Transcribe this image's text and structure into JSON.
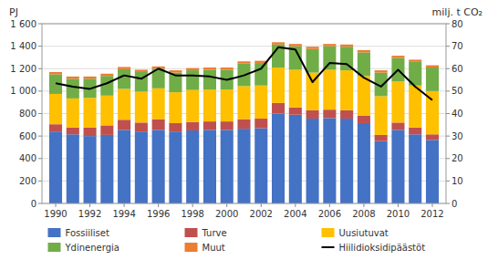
{
  "chart_data": {
    "type": "bar",
    "stacked": true,
    "grid": true,
    "legend": "bottom",
    "ylabel": "PJ",
    "y2label": "milj. t  CO₂",
    "x": [
      1990,
      1991,
      1992,
      1993,
      1994,
      1995,
      1996,
      1997,
      1998,
      1999,
      2000,
      2001,
      2002,
      2003,
      2004,
      2005,
      2006,
      2007,
      2008,
      2009,
      2010,
      2011,
      2012
    ],
    "xlim": [
      1989.2,
      2012.8
    ],
    "xticks": [
      1990,
      1992,
      1994,
      1996,
      1998,
      2000,
      2002,
      2004,
      2006,
      2008,
      2010,
      2012
    ],
    "ylim": [
      0,
      1600
    ],
    "yticks": [
      0,
      200,
      400,
      600,
      800,
      {
        "value": 1000,
        "label": "1 000"
      },
      {
        "value": 1200,
        "label": "1 200"
      },
      {
        "value": 1400,
        "label": "1 400"
      },
      {
        "value": 1600,
        "label": "1 600"
      }
    ],
    "y2lim": [
      0,
      80
    ],
    "y2ticks": [
      0,
      10,
      20,
      30,
      40,
      50,
      60,
      70,
      80
    ],
    "series": [
      {
        "name": "Fossiiliset",
        "color": "#4472c4",
        "values": [
          640,
          615,
          600,
          610,
          655,
          640,
          655,
          640,
          650,
          655,
          655,
          665,
          670,
          800,
          790,
          755,
          760,
          755,
          715,
          555,
          655,
          615,
          565
        ]
      },
      {
        "name": "Turve",
        "color": "#c0504d",
        "values": [
          65,
          60,
          75,
          85,
          90,
          80,
          95,
          75,
          75,
          75,
          75,
          85,
          85,
          95,
          65,
          75,
          75,
          75,
          65,
          55,
          65,
          60,
          50
        ]
      },
      {
        "name": "Uusiutuvat",
        "color": "#ffc000",
        "values": [
          270,
          260,
          265,
          265,
          275,
          275,
          275,
          275,
          285,
          285,
          285,
          295,
          295,
          315,
          335,
          335,
          355,
          355,
          355,
          345,
          365,
          375,
          385
        ]
      },
      {
        "name": "Ydinenergia",
        "color": "#70ad47",
        "values": [
          175,
          175,
          170,
          175,
          175,
          175,
          175,
          175,
          175,
          175,
          175,
          200,
          200,
          205,
          210,
          210,
          210,
          210,
          210,
          210,
          210,
          210,
          210
        ]
      },
      {
        "name": "Muut",
        "color": "#ed7d31",
        "values": [
          20,
          20,
          20,
          20,
          20,
          20,
          20,
          20,
          20,
          20,
          20,
          20,
          20,
          20,
          20,
          20,
          20,
          20,
          20,
          20,
          20,
          20,
          20
        ]
      },
      {
        "name": "Hiilidioksidipäästöt",
        "type": "line",
        "axis": "y2",
        "color": "#000000",
        "values": [
          53.5,
          52.0,
          51.0,
          53.5,
          57.0,
          55.5,
          60.0,
          57.0,
          57.0,
          56.5,
          55.0,
          57.0,
          60.0,
          69.5,
          68.5,
          54.0,
          62.5,
          62.0,
          56.0,
          52.0,
          59.5,
          52.0,
          46.0
        ]
      }
    ]
  }
}
